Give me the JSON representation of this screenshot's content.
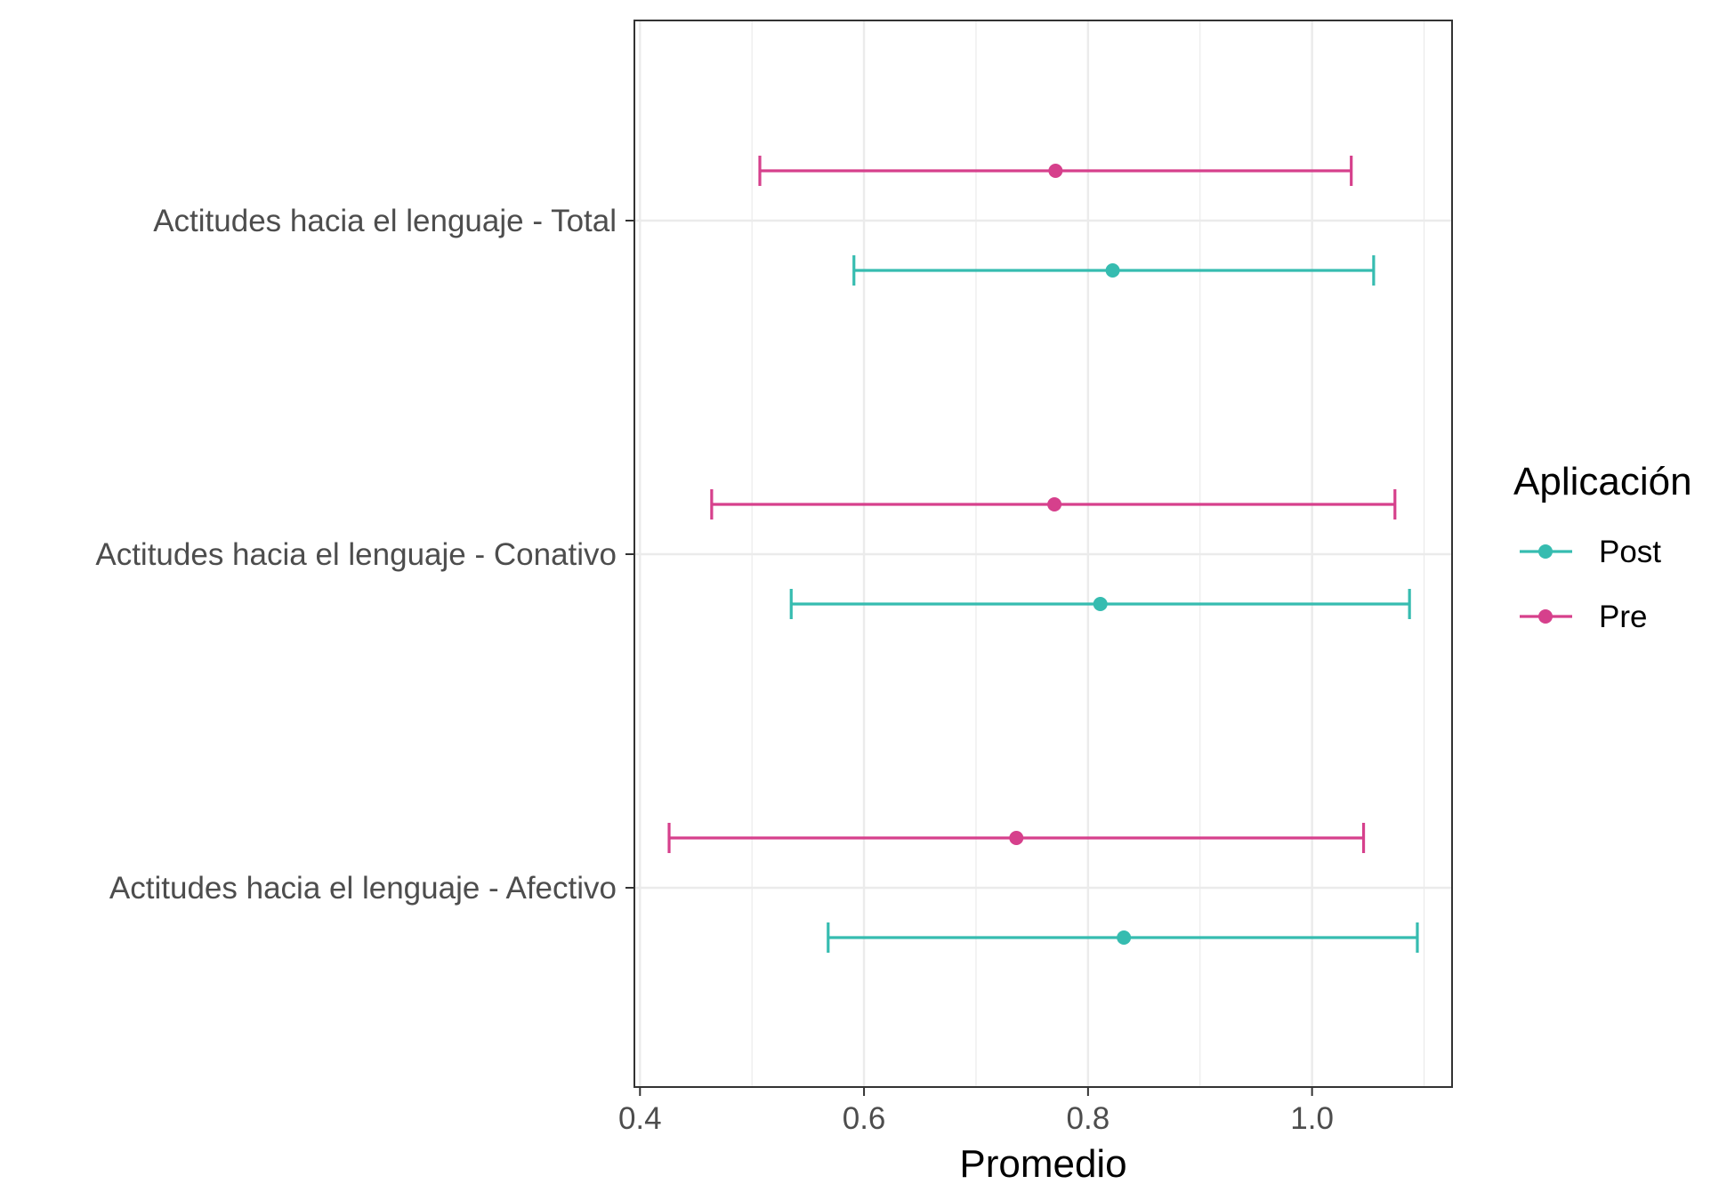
{
  "chart_data": {
    "type": "errorbar",
    "xlabel": "Promedio",
    "ylabel": "",
    "xlim": [
      0.395,
      1.125
    ],
    "x_ticks": [
      "0.4",
      "0.6",
      "0.8",
      "1.0"
    ],
    "x_tick_values": [
      0.4,
      0.6,
      0.8,
      1.0
    ],
    "categories": [
      "Actitudes hacia el lenguaje - Total",
      "Actitudes hacia el lenguaje - Conativo",
      "Actitudes hacia el lenguaje - Afectivo"
    ],
    "legend": {
      "title": "Aplicación",
      "placement": "right"
    },
    "series": [
      {
        "name": "Post",
        "color": "#36bcb0",
        "points": [
          {
            "category": "Actitudes hacia el lenguaje - Total",
            "mean": 0.822,
            "low": 0.591,
            "high": 1.055
          },
          {
            "category": "Actitudes hacia el lenguaje - Conativo",
            "mean": 0.811,
            "low": 0.535,
            "high": 1.087
          },
          {
            "category": "Actitudes hacia el lenguaje - Afectivo",
            "mean": 0.832,
            "low": 0.568,
            "high": 1.094
          }
        ]
      },
      {
        "name": "Pre",
        "color": "#d6408c",
        "points": [
          {
            "category": "Actitudes hacia el lenguaje - Total",
            "mean": 0.771,
            "low": 0.507,
            "high": 1.035
          },
          {
            "category": "Actitudes hacia el lenguaje - Conativo",
            "mean": 0.77,
            "low": 0.464,
            "high": 1.074
          },
          {
            "category": "Actitudes hacia el lenguaje - Afectivo",
            "mean": 0.736,
            "low": 0.426,
            "high": 1.046
          }
        ]
      }
    ],
    "grid": true
  }
}
